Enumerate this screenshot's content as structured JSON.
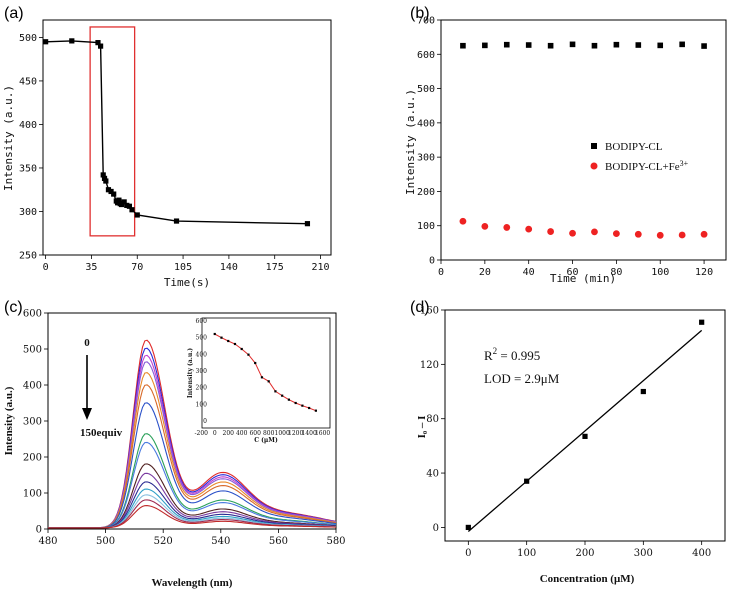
{
  "chart_data": [
    {
      "panel": "(a)",
      "type": "line",
      "xlabel": "Time(s)",
      "ylabel": "Intensity (a.u.)",
      "xlim": [
        -2,
        218
      ],
      "ylim": [
        250,
        520
      ],
      "xticks": [
        0,
        35,
        70,
        105,
        140,
        175,
        210
      ],
      "yticks": [
        250,
        300,
        350,
        400,
        450,
        500
      ],
      "x": [
        0,
        20,
        40,
        42,
        44,
        45,
        46,
        48,
        50,
        52,
        54,
        55,
        56,
        57,
        58,
        60,
        62,
        64,
        66,
        70,
        100,
        200
      ],
      "y": [
        495,
        496,
        494,
        490,
        342,
        338,
        335,
        325,
        323,
        320,
        312,
        310,
        313,
        309,
        308,
        311,
        307,
        306,
        302,
        296,
        289,
        286
      ],
      "highlight": {
        "x_range": [
          34,
          68
        ],
        "y_range": [
          272,
          512
        ],
        "color": "#e03030"
      }
    },
    {
      "panel": "(b)",
      "type": "scatter",
      "xlabel": "Time (min)",
      "ylabel": "Intensity (a.u.)",
      "xlim": [
        0,
        130
      ],
      "ylim": [
        0,
        700
      ],
      "xticks": [
        0,
        20,
        40,
        60,
        80,
        100,
        120
      ],
      "yticks": [
        0,
        100,
        200,
        300,
        400,
        500,
        600,
        700
      ],
      "legend_position": "right",
      "series": [
        {
          "name": "BODIPY-CL",
          "color": "#000000",
          "marker": "square",
          "x": [
            10,
            20,
            30,
            40,
            50,
            60,
            70,
            80,
            90,
            100,
            110,
            120
          ],
          "values": [
            625,
            626,
            628,
            627,
            625,
            629,
            625,
            628,
            627,
            626,
            629,
            624
          ]
        },
        {
          "name": "BODIPY-CL+Fe",
          "name_sup": "3+",
          "color": "#ee2222",
          "marker": "circle",
          "x": [
            10,
            20,
            30,
            40,
            50,
            60,
            70,
            80,
            90,
            100,
            110,
            120
          ],
          "values": [
            113,
            98,
            95,
            90,
            83,
            78,
            82,
            77,
            75,
            72,
            73,
            75
          ]
        }
      ]
    },
    {
      "panel": "(c)",
      "type": "line",
      "xlabel": "Wavelength (nm)",
      "ylabel": "Intensity (a.u.)",
      "xlim": [
        480,
        580
      ],
      "ylim": [
        0,
        600
      ],
      "xticks": [
        480,
        500,
        520,
        540,
        560,
        580
      ],
      "yticks": [
        0,
        100,
        200,
        300,
        400,
        500,
        600
      ],
      "annotation_top": "0",
      "annotation_bottom": "150equiv",
      "peak_nm": 514,
      "series": [
        {
          "peak": 522,
          "color": "#e02a2a"
        },
        {
          "peak": 500,
          "color": "#2a2ad8"
        },
        {
          "peak": 480,
          "color": "#c040d0"
        },
        {
          "peak": 462,
          "color": "#8a5ad8"
        },
        {
          "peak": 432,
          "color": "#e88a2a"
        },
        {
          "peak": 398,
          "color": "#d86a2a"
        },
        {
          "peak": 348,
          "color": "#2a50c8"
        },
        {
          "peak": 262,
          "color": "#2aa05a"
        },
        {
          "peak": 238,
          "color": "#4a7ae0"
        },
        {
          "peak": 178,
          "color": "#502020"
        },
        {
          "peak": 152,
          "color": "#7a3aa0"
        },
        {
          "peak": 128,
          "color": "#2a2a90"
        },
        {
          "peak": 108,
          "color": "#30a0c8"
        },
        {
          "peak": 92,
          "color": "#8ac0e0"
        },
        {
          "peak": 78,
          "color": "#a02a50"
        },
        {
          "peak": 62,
          "color": "#c02a2a"
        }
      ],
      "inset": {
        "xlabel": "C (μM)",
        "ylabel": "Intensity (a.u.)",
        "xlim": [
          -100,
          1650
        ],
        "ylim": [
          0,
          600
        ],
        "xticks": [
          -200,
          0,
          200,
          400,
          600,
          800,
          1000,
          1200,
          1400,
          1600
        ],
        "yticks": [
          0,
          100,
          200,
          300,
          400,
          500,
          600
        ],
        "x": [
          0,
          100,
          200,
          300,
          400,
          500,
          600,
          700,
          800,
          900,
          1000,
          1100,
          1200,
          1300,
          1400,
          1500
        ],
        "values": [
          522,
          500,
          480,
          462,
          432,
          398,
          348,
          262,
          238,
          178,
          152,
          128,
          108,
          92,
          78,
          62
        ]
      }
    },
    {
      "panel": "(d)",
      "type": "scatter",
      "xlabel": "Concentration (μM)",
      "ylabel": "I₀ – I",
      "xlim": [
        -40,
        440
      ],
      "ylim": [
        -10,
        160
      ],
      "xticks": [
        0,
        100,
        200,
        300,
        400
      ],
      "yticks": [
        0,
        40,
        80,
        120,
        160
      ],
      "x": [
        0,
        100,
        200,
        300,
        400
      ],
      "values": [
        0,
        34,
        67,
        100,
        151
      ],
      "fit": {
        "x": [
          0,
          400
        ],
        "y": [
          -3,
          145
        ]
      },
      "r2_label": "R",
      "r2_sup": "2",
      "r2_value": " = 0.995",
      "lod_text": "LOD = 2.9μM"
    }
  ]
}
